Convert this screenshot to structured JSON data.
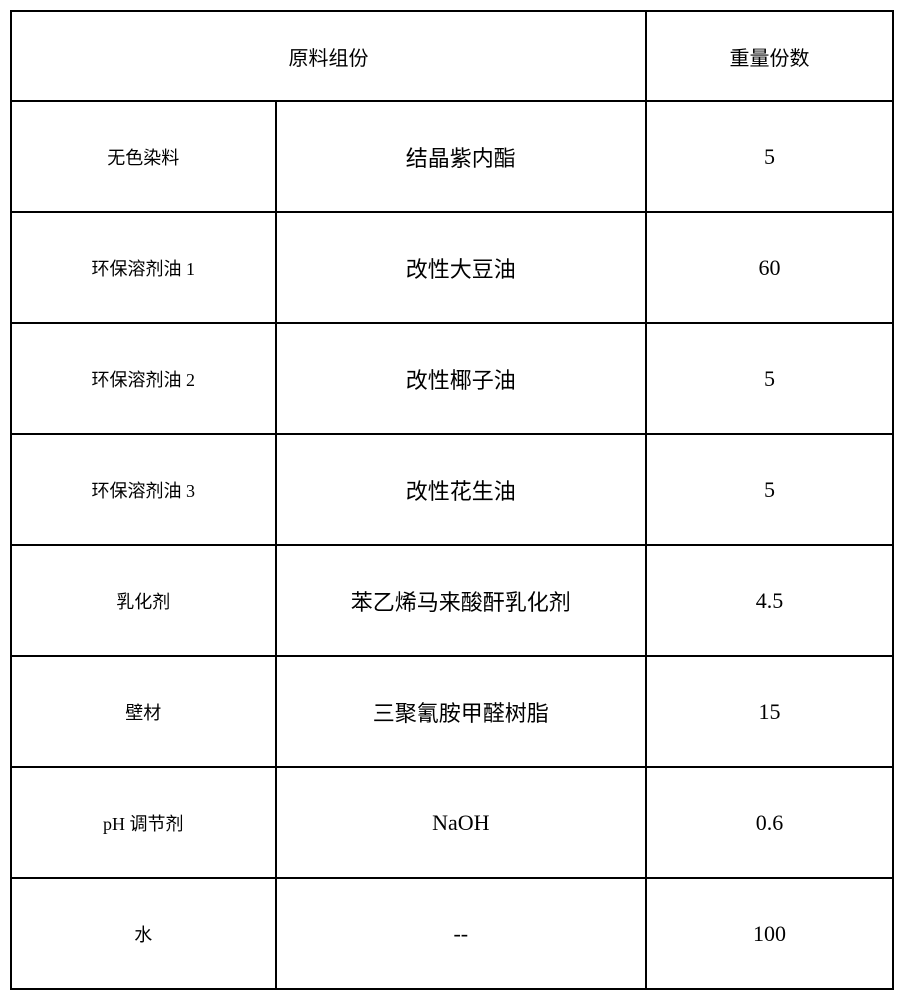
{
  "table": {
    "header": {
      "ingredients": "原料组份",
      "weight": "重量份数"
    },
    "rows": [
      {
        "label": "无色染料",
        "value": "结晶紫内酯",
        "weight": "5"
      },
      {
        "label": "环保溶剂油 1",
        "value": "改性大豆油",
        "weight": "60"
      },
      {
        "label": "环保溶剂油 2",
        "value": "改性椰子油",
        "weight": "5"
      },
      {
        "label": "环保溶剂油 3",
        "value": "改性花生油",
        "weight": "5"
      },
      {
        "label": "乳化剂",
        "value": "苯乙烯马来酸酐乳化剂",
        "weight": "4.5"
      },
      {
        "label": "壁材",
        "value": "三聚氰胺甲醛树脂",
        "weight": "15"
      },
      {
        "label": "pH 调节剂",
        "value": "NaOH",
        "weight": "0.6"
      },
      {
        "label": "水",
        "value": "--",
        "weight": "100"
      }
    ],
    "styling": {
      "border_color": "#000000",
      "border_width": 2,
      "background_color": "#ffffff",
      "text_color": "#000000",
      "header_fontsize": 20,
      "label_fontsize": 18,
      "value_fontsize": 22,
      "weight_fontsize": 22,
      "col_widths_pct": [
        30,
        42,
        28
      ]
    }
  }
}
